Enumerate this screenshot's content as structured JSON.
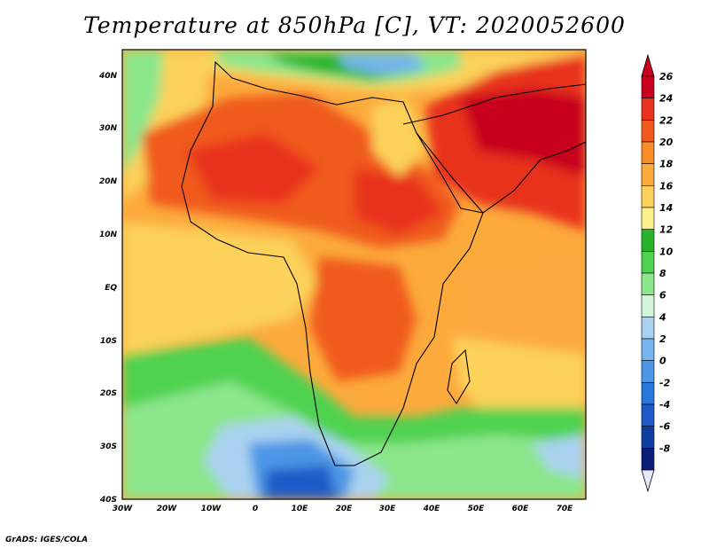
{
  "title": "Temperature at 850hPa [C], VT: 2020052600",
  "credit": "GrADS: IGES/COLA",
  "map": {
    "lon_labels": [
      "30W",
      "20W",
      "10W",
      "0",
      "10E",
      "20E",
      "30E",
      "40E",
      "50E",
      "60E",
      "70E"
    ],
    "lat_labels": [
      "40N",
      "30N",
      "20N",
      "10N",
      "EQ",
      "10S",
      "20S",
      "30S",
      "40S"
    ],
    "lon_range": [
      -30,
      75
    ],
    "lat_range": [
      -40,
      45
    ]
  },
  "colorbar": {
    "labels": [
      "26",
      "24",
      "22",
      "20",
      "18",
      "16",
      "14",
      "12",
      "10",
      "8",
      "6",
      "4",
      "2",
      "0",
      "-2",
      "-4",
      "-6",
      "-8"
    ],
    "colors": [
      "#c8001e",
      "#e8321e",
      "#f05a1e",
      "#fa8c28",
      "#fcaa3c",
      "#fcd25a",
      "#fcf08c",
      "#28b428",
      "#50d250",
      "#8ce68c",
      "#d2f5dc",
      "#aad2f0",
      "#78b4f0",
      "#4b96e6",
      "#2878dc",
      "#1e5ac8",
      "#0f3ca0",
      "#0a1e78"
    ],
    "top_arrow_color": "#c8001e",
    "bottom_arrow_color": "#e6e6fa"
  }
}
